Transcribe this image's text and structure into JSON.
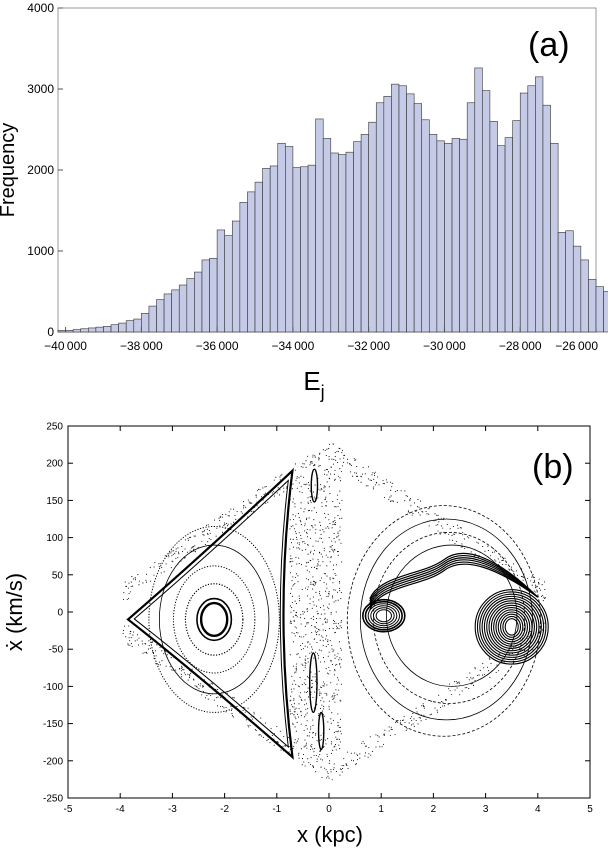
{
  "chart_data": [
    {
      "type": "bar",
      "panel_label": "(a)",
      "xlabel": "E",
      "xlabel_sub": "j",
      "ylabel": "Frequency",
      "xlim": [
        -40200,
        -26000
      ],
      "ylim": [
        0,
        4000
      ],
      "bin_start": -40200,
      "bin_width": 200,
      "bar_color": "#c5cae6",
      "x_ticks": [
        -40000,
        -38000,
        -36000,
        -34000,
        -32000,
        -30000,
        -28000,
        -26000
      ],
      "x_tick_labels": [
        "−40 000",
        "−38 000",
        "−36 000",
        "−34 000",
        "−32 000",
        "−30 000",
        "−28 000",
        "−26 000"
      ],
      "y_ticks": [
        0,
        1000,
        2000,
        3000,
        4000
      ],
      "y_tick_labels": [
        "0",
        "1000",
        "2000",
        "3000",
        "4000"
      ],
      "values": [
        20,
        20,
        30,
        40,
        50,
        60,
        70,
        90,
        110,
        140,
        160,
        230,
        320,
        400,
        470,
        520,
        580,
        660,
        740,
        890,
        910,
        1260,
        1190,
        1370,
        1600,
        1730,
        1850,
        2020,
        2050,
        2330,
        2290,
        2030,
        2040,
        2060,
        2630,
        2390,
        2210,
        2190,
        2220,
        2350,
        2440,
        2590,
        2830,
        2910,
        3060,
        3040,
        2940,
        2820,
        2620,
        2440,
        2360,
        2330,
        2390,
        2380,
        2830,
        3260,
        2980,
        2600,
        2300,
        2400,
        2610,
        2950,
        3040,
        3150,
        2800,
        2330,
        1230,
        1250,
        1060,
        890,
        650,
        560,
        500,
        460,
        460
      ]
    },
    {
      "type": "scatter",
      "panel_label": "(b)",
      "xlabel": "x (kpc)",
      "ylabel": "ẋ (km/s)",
      "xlim": [
        -5,
        5
      ],
      "ylim": [
        -250,
        250
      ],
      "x_ticks": [
        -5,
        -4,
        -3,
        -2,
        -1,
        0,
        1,
        2,
        3,
        4,
        5
      ],
      "x_tick_labels": [
        "-5",
        "-4",
        "-3",
        "-2",
        "-1",
        "0",
        "1",
        "2",
        "3",
        "4",
        "5"
      ],
      "y_ticks": [
        250,
        200,
        150,
        100,
        50,
        0,
        -50,
        -100,
        -150,
        -200,
        -250
      ],
      "y_tick_labels": [
        "250",
        "200",
        "150",
        "100",
        "50",
        "0",
        "-50",
        "-100",
        "-150",
        "-200",
        "-250"
      ],
      "grid": false,
      "point_color": "#000000",
      "left_island": {
        "center": [
          -2.2,
          -10
        ],
        "outer_vertices": [
          [
            -0.7,
            190
          ],
          [
            -0.7,
            -195
          ],
          [
            -3.85,
            -10
          ]
        ],
        "curves": [
          {
            "rx": 0.25,
            "ry": 22,
            "style": "solid",
            "width": 2.4
          },
          {
            "rx": 0.33,
            "ry": 28,
            "style": "solid",
            "width": 1.6
          },
          {
            "rx": 0.55,
            "ry": 48,
            "style": "dotted",
            "width": 1.2
          },
          {
            "rx": 0.78,
            "ry": 72,
            "style": "dotted",
            "width": 1.0
          },
          {
            "rx": 1.05,
            "ry": 100,
            "style": "solid",
            "width": 0.8
          },
          {
            "rx": 1.25,
            "ry": 125,
            "style": "dotted",
            "width": 1.0
          }
        ]
      },
      "right_island": {
        "center": [
          3.5,
          -20
        ],
        "left_center": [
          1.05,
          -5
        ],
        "curves": [
          {
            "rx": 0.1,
            "ry": 10
          },
          {
            "rx": 0.2,
            "ry": 18
          },
          {
            "rx": 0.32,
            "ry": 26
          },
          {
            "rx": 0.45,
            "ry": 34
          },
          {
            "rx": 0.58,
            "ry": 42
          }
        ],
        "outer_loops": [
          {
            "cx": 2.35,
            "cy": -5,
            "rx": 1.25,
            "ry": 95
          },
          {
            "cx": 2.3,
            "cy": -8,
            "rx": 1.45,
            "ry": 115
          },
          {
            "cx": 2.25,
            "cy": -10,
            "rx": 1.65,
            "ry": 135
          },
          {
            "cx": 2.2,
            "cy": -12,
            "rx": 1.85,
            "ry": 155
          }
        ]
      },
      "small_islands": [
        {
          "cx": -0.28,
          "cy": 170,
          "rx": 0.06,
          "ry": 22
        },
        {
          "cx": -0.3,
          "cy": -95,
          "rx": 0.07,
          "ry": 40
        },
        {
          "cx": -0.15,
          "cy": -160,
          "rx": 0.05,
          "ry": 25
        }
      ]
    }
  ]
}
